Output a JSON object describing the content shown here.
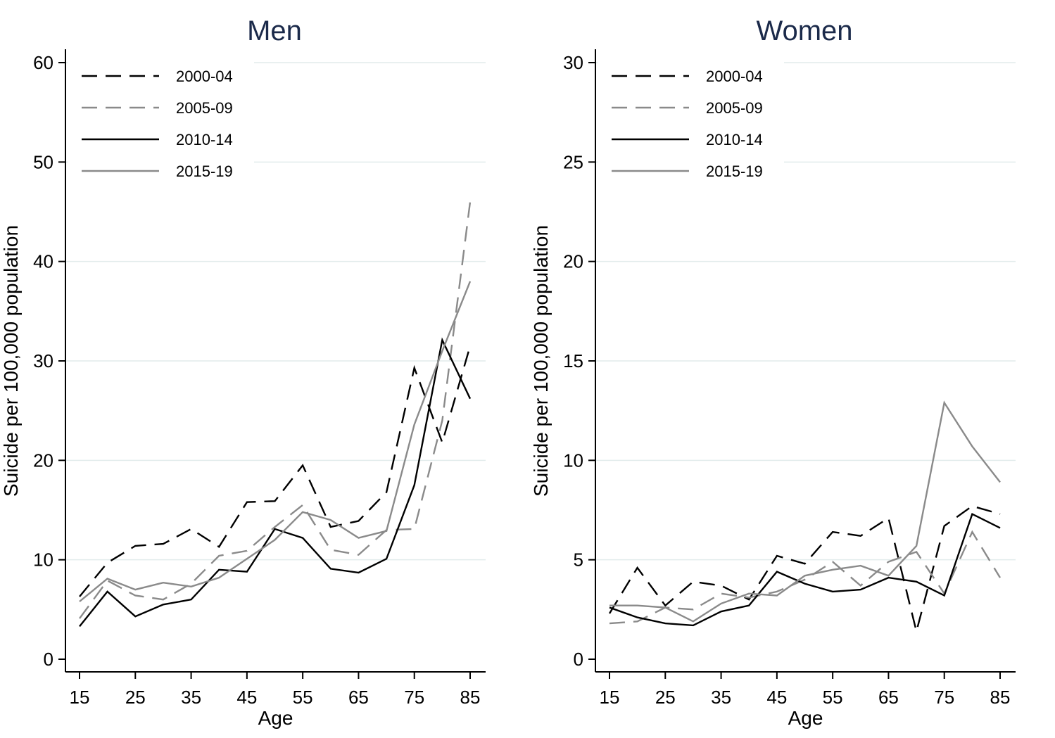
{
  "chart_data": [
    {
      "type": "line",
      "title": "Men",
      "xlabel": "Age",
      "ylabel": "Suicide per 100,000 population",
      "xlim": [
        15,
        85
      ],
      "ylim": [
        0,
        60
      ],
      "xticks": [
        15,
        25,
        35,
        45,
        55,
        65,
        75,
        85
      ],
      "yticks": [
        0,
        10,
        20,
        30,
        40,
        50,
        60
      ],
      "grid": "horizontal",
      "legend_position": "top-left",
      "x": [
        15,
        20,
        25,
        30,
        35,
        40,
        45,
        50,
        55,
        60,
        65,
        70,
        75,
        80,
        85
      ],
      "series": [
        {
          "name": "2000-04",
          "style": "dashed",
          "color": "#000000",
          "values": [
            6.3,
            9.7,
            11.4,
            11.6,
            13.1,
            11.3,
            15.8,
            15.9,
            19.5,
            13.3,
            13.9,
            16.8,
            29.3,
            21.8,
            31.5
          ]
        },
        {
          "name": "2005-09",
          "style": "dashed",
          "color": "#8a8a8a",
          "values": [
            4.1,
            7.9,
            6.4,
            6.0,
            7.6,
            10.4,
            10.9,
            13.3,
            15.5,
            11.0,
            10.5,
            13.0,
            13.1,
            24.0,
            46.0
          ]
        },
        {
          "name": "2010-14",
          "style": "solid",
          "color": "#000000",
          "values": [
            3.3,
            6.8,
            4.3,
            5.5,
            6.0,
            9.0,
            8.8,
            13.1,
            12.2,
            9.1,
            8.7,
            10.1,
            17.5,
            32.1,
            26.2
          ]
        },
        {
          "name": "2015-19",
          "style": "solid",
          "color": "#8a8a8a",
          "values": [
            5.8,
            8.1,
            7.0,
            7.7,
            7.3,
            8.2,
            10.1,
            12.0,
            14.8,
            14.0,
            12.2,
            12.9,
            23.6,
            31.0,
            38.0
          ]
        }
      ]
    },
    {
      "type": "line",
      "title": "Women",
      "xlabel": "Age",
      "ylabel": "Suicide per 100,000 population",
      "xlim": [
        15,
        85
      ],
      "ylim": [
        0,
        30
      ],
      "xticks": [
        15,
        25,
        35,
        45,
        55,
        65,
        75,
        85
      ],
      "yticks": [
        0,
        5,
        10,
        15,
        20,
        25,
        30
      ],
      "grid": "horizontal",
      "legend_position": "top-left",
      "x": [
        15,
        20,
        25,
        30,
        35,
        40,
        45,
        50,
        55,
        60,
        65,
        70,
        75,
        80,
        85
      ],
      "series": [
        {
          "name": "2000-04",
          "style": "dashed",
          "color": "#000000",
          "values": [
            2.3,
            4.6,
            2.7,
            3.9,
            3.7,
            3.0,
            5.2,
            4.8,
            6.4,
            6.2,
            7.1,
            1.4,
            6.7,
            7.7,
            7.3
          ]
        },
        {
          "name": "2005-09",
          "style": "dashed",
          "color": "#8a8a8a",
          "values": [
            1.8,
            1.9,
            2.6,
            2.5,
            3.3,
            3.1,
            3.4,
            4.0,
            4.9,
            3.7,
            4.9,
            5.4,
            3.3,
            6.4,
            4.1
          ]
        },
        {
          "name": "2010-14",
          "style": "solid",
          "color": "#000000",
          "values": [
            2.6,
            2.1,
            1.8,
            1.7,
            2.4,
            2.7,
            4.4,
            3.8,
            3.4,
            3.5,
            4.1,
            3.9,
            3.2,
            7.3,
            6.6
          ]
        },
        {
          "name": "2015-19",
          "style": "solid",
          "color": "#8a8a8a",
          "values": [
            2.7,
            2.7,
            2.6,
            1.9,
            2.8,
            3.3,
            3.2,
            4.2,
            4.5,
            4.7,
            4.2,
            5.7,
            12.9,
            10.7,
            8.9
          ]
        }
      ]
    }
  ]
}
